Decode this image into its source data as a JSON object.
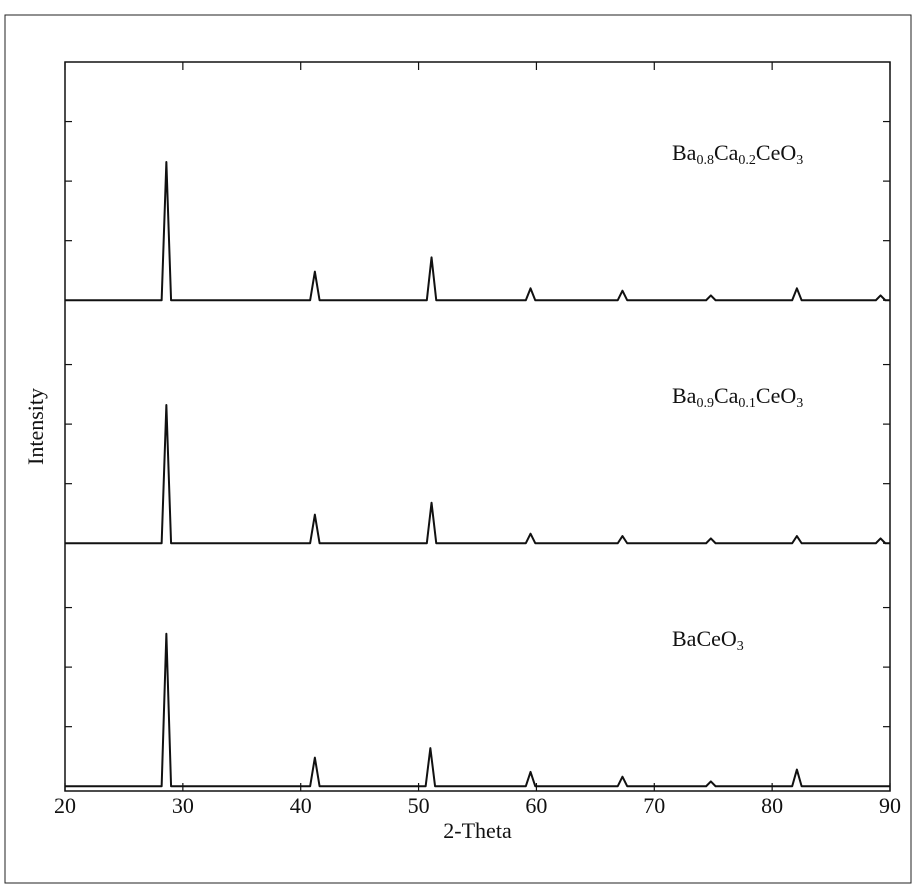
{
  "chart_data": [
    {
      "type": "line",
      "color": "#111111",
      "xlim": [
        20,
        90
      ],
      "ylim": [
        -2,
        100
      ],
      "yticks": [
        0,
        25,
        50,
        75
      ],
      "annotation": [
        "Ba",
        "0.8",
        "Ca",
        "0.2",
        "CeO",
        "3"
      ],
      "x": [
        20,
        28.2,
        28.6,
        29.0,
        40.8,
        41.2,
        41.6,
        50.7,
        51.1,
        51.5,
        59.1,
        59.5,
        59.9,
        66.9,
        67.3,
        67.7,
        74.4,
        74.8,
        75.2,
        81.7,
        82.1,
        82.5,
        88.8,
        89.2,
        89.6,
        90
      ],
      "values": [
        0,
        0,
        58,
        0,
        0,
        12,
        0,
        0,
        18,
        0,
        0,
        5,
        0,
        0,
        4,
        0,
        0,
        2,
        0,
        0,
        5,
        0,
        0,
        2,
        0,
        0
      ]
    },
    {
      "type": "line",
      "color": "#111111",
      "xlim": [
        20,
        90
      ],
      "ylim": [
        -2,
        100
      ],
      "yticks": [
        0,
        25,
        50,
        75
      ],
      "y_label": "Intensity",
      "annotation": [
        "Ba",
        "0.9",
        "Ca",
        "0.1",
        "CeO",
        "3"
      ],
      "x": [
        20,
        28.2,
        28.6,
        29.0,
        40.8,
        41.2,
        41.6,
        50.7,
        51.1,
        51.5,
        59.1,
        59.5,
        59.9,
        66.9,
        67.3,
        67.7,
        74.4,
        74.8,
        75.2,
        81.7,
        82.1,
        82.5,
        88.8,
        89.2,
        89.6,
        90
      ],
      "values": [
        0,
        0,
        58,
        0,
        0,
        12,
        0,
        0,
        17,
        0,
        0,
        4,
        0,
        0,
        3,
        0,
        0,
        2,
        0,
        0,
        3,
        0,
        0,
        2,
        0,
        0
      ]
    },
    {
      "type": "line",
      "color": "#111111",
      "xlim": [
        20,
        90
      ],
      "ylim": [
        -2,
        100
      ],
      "yticks": [
        0,
        25,
        50,
        75
      ],
      "x_label": "2-Theta",
      "xticks": [
        20,
        30,
        40,
        50,
        60,
        70,
        80,
        90
      ],
      "annotation": [
        "BaCeO",
        "3"
      ],
      "x": [
        20,
        28.2,
        28.6,
        29.0,
        40.8,
        41.2,
        41.6,
        50.6,
        51.0,
        51.4,
        59.1,
        59.5,
        59.9,
        66.9,
        67.3,
        67.7,
        74.4,
        74.8,
        75.2,
        81.7,
        82.1,
        82.5,
        90
      ],
      "values": [
        0,
        0,
        64,
        0,
        0,
        12,
        0,
        0,
        16,
        0,
        0,
        6,
        0,
        0,
        4,
        0,
        0,
        2,
        0,
        0,
        7,
        0,
        0
      ]
    }
  ]
}
